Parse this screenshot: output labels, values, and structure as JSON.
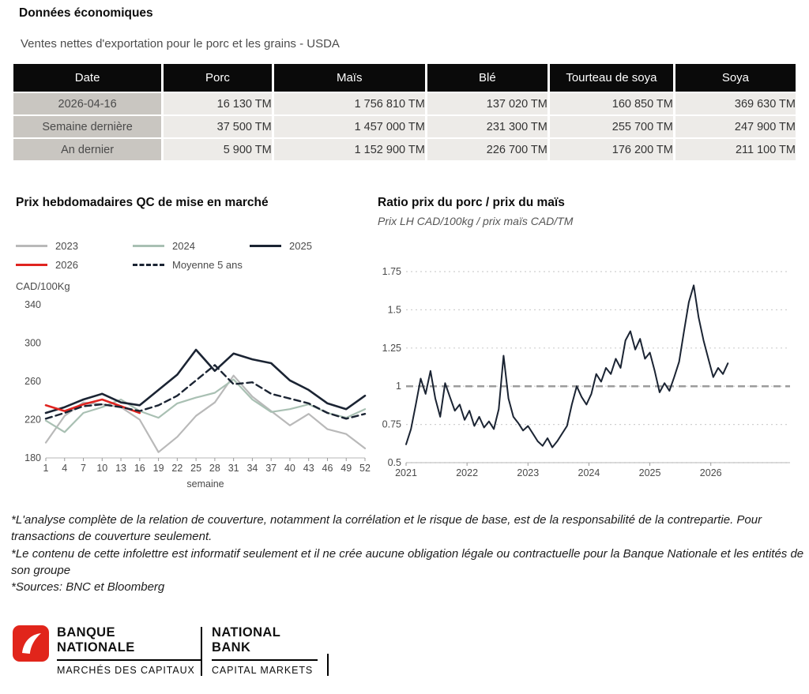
{
  "page": {
    "title": "Données économiques",
    "subtitle": "Ventes nettes d'exportation pour le porc et les grains - USDA"
  },
  "table": {
    "headers": [
      "Date",
      "Porc",
      "Maïs",
      "Blé",
      "Tourteau de soya",
      "Soya"
    ],
    "rows": [
      {
        "label": "2026-04-16",
        "values": [
          "16 130 TM",
          "1 756 810 TM",
          "137 020 TM",
          "160 850 TM",
          "369 630 TM"
        ]
      },
      {
        "label": "Semaine dernière",
        "values": [
          "37 500 TM",
          "1 457 000 TM",
          "231 300 TM",
          "255 700 TM",
          "247 900 TM"
        ]
      },
      {
        "label": "An dernier",
        "values": [
          "5 900 TM",
          "1 152 900 TM",
          "226 700 TM",
          "176 200 TM",
          "211 100 TM"
        ]
      }
    ]
  },
  "chart_data": [
    {
      "type": "line",
      "title": "Prix hebdomadaires QC de mise en marché",
      "ylabel": "CAD/100Kg",
      "xlabel": "semaine",
      "xlim": [
        1,
        52
      ],
      "ylim": [
        180,
        340
      ],
      "xticks": [
        1,
        4,
        7,
        10,
        13,
        16,
        19,
        22,
        25,
        28,
        31,
        34,
        37,
        40,
        43,
        46,
        49,
        52
      ],
      "yticks": [
        180,
        220,
        260,
        300,
        340
      ],
      "grid": false,
      "legend_position": "top",
      "x": [
        1,
        4,
        7,
        10,
        13,
        16,
        19,
        22,
        25,
        28,
        31,
        34,
        37,
        40,
        43,
        46,
        49,
        52
      ],
      "series": [
        {
          "name": "2023",
          "color": "#b9b9b9",
          "width": 2.2,
          "values": [
            196,
            224,
            238,
            236,
            233,
            220,
            186,
            202,
            224,
            238,
            266,
            244,
            229,
            214,
            226,
            210,
            205,
            190
          ]
        },
        {
          "name": "2024",
          "color": "#a9c0b3",
          "width": 2.2,
          "values": [
            219,
            207,
            227,
            233,
            241,
            229,
            222,
            237,
            243,
            248,
            262,
            241,
            228,
            231,
            236,
            227,
            222,
            231
          ]
        },
        {
          "name": "2025",
          "color": "#1b2433",
          "width": 2.6,
          "values": [
            227,
            233,
            241,
            247,
            238,
            235,
            251,
            267,
            293,
            271,
            289,
            283,
            279,
            261,
            251,
            237,
            231,
            245
          ]
        },
        {
          "name": "2026",
          "color": "#e02420",
          "width": 2.6,
          "values": [
            235,
            229,
            236,
            241,
            234,
            227,
            null,
            null,
            null,
            null,
            null,
            null,
            null,
            null,
            null,
            null,
            null,
            null
          ]
        },
        {
          "name": "Moyenne 5 ans",
          "color": "#1b2433",
          "width": 2.4,
          "dash": "8 5",
          "values": [
            221,
            227,
            234,
            236,
            233,
            229,
            235,
            245,
            261,
            277,
            257,
            259,
            247,
            242,
            237,
            227,
            221,
            226
          ]
        }
      ]
    },
    {
      "type": "line",
      "title": "Ratio prix du porc / prix du maïs",
      "subtitle": "Prix LH CAD/100kg / prix maïs CAD/TM",
      "xlim": [
        2021,
        2027.3
      ],
      "ylim": [
        0.5,
        1.75
      ],
      "xticks": [
        2021,
        2022,
        2023,
        2024,
        2025,
        2026
      ],
      "yticks": [
        0.5,
        0.75,
        1,
        1.25,
        1.5,
        1.75
      ],
      "grid": true,
      "refline": 1,
      "x": [
        2021.0,
        2021.08,
        2021.16,
        2021.24,
        2021.32,
        2021.4,
        2021.48,
        2021.56,
        2021.64,
        2021.72,
        2021.8,
        2021.88,
        2021.96,
        2022.04,
        2022.12,
        2022.2,
        2022.28,
        2022.36,
        2022.44,
        2022.52,
        2022.6,
        2022.68,
        2022.76,
        2022.84,
        2022.92,
        2023.0,
        2023.08,
        2023.16,
        2023.24,
        2023.32,
        2023.4,
        2023.48,
        2023.56,
        2023.64,
        2023.72,
        2023.8,
        2023.88,
        2023.96,
        2024.04,
        2024.12,
        2024.2,
        2024.28,
        2024.36,
        2024.44,
        2024.52,
        2024.6,
        2024.68,
        2024.76,
        2024.84,
        2024.92,
        2025.0,
        2025.08,
        2025.16,
        2025.24,
        2025.32,
        2025.4,
        2025.48,
        2025.56,
        2025.64,
        2025.72,
        2025.8,
        2025.88,
        2025.96,
        2026.04,
        2026.12,
        2026.2,
        2026.28
      ],
      "series": [
        {
          "name": "Ratio porc/maïs",
          "color": "#1b2433",
          "width": 2,
          "values": [
            0.62,
            0.72,
            0.88,
            1.05,
            0.95,
            1.1,
            0.92,
            0.8,
            1.02,
            0.93,
            0.84,
            0.88,
            0.78,
            0.84,
            0.74,
            0.8,
            0.73,
            0.77,
            0.72,
            0.85,
            1.2,
            0.92,
            0.8,
            0.76,
            0.71,
            0.74,
            0.69,
            0.64,
            0.61,
            0.66,
            0.6,
            0.64,
            0.69,
            0.74,
            0.88,
            1.0,
            0.93,
            0.88,
            0.95,
            1.08,
            1.03,
            1.12,
            1.08,
            1.18,
            1.12,
            1.3,
            1.36,
            1.24,
            1.31,
            1.18,
            1.22,
            1.1,
            0.96,
            1.02,
            0.97,
            1.06,
            1.16,
            1.36,
            1.55,
            1.66,
            1.45,
            1.3,
            1.18,
            1.06,
            1.12,
            1.08,
            1.15
          ]
        }
      ]
    }
  ],
  "footnotes": [
    "*L'analyse complète de la relation de couverture, notamment la corrélation et le risque de base, est de la responsabilité de la contrepartie. Pour transactions de couverture seulement.",
    "*Le contenu de cette infolettre est informatif seulement et il ne crée aucune obligation légale ou contractuelle pour la Banque Nationale et les entités de son groupe",
    "*Sources: BNC et Bloomberg"
  ],
  "logo": {
    "brand_color": "#e1251b",
    "fr_name": "BANQUE\nNATIONALE",
    "fr_sub": "MARCHÉS DES CAPITAUX",
    "en_name": "NATIONAL\nBANK",
    "en_sub": "CAPITAL MARKETS"
  }
}
